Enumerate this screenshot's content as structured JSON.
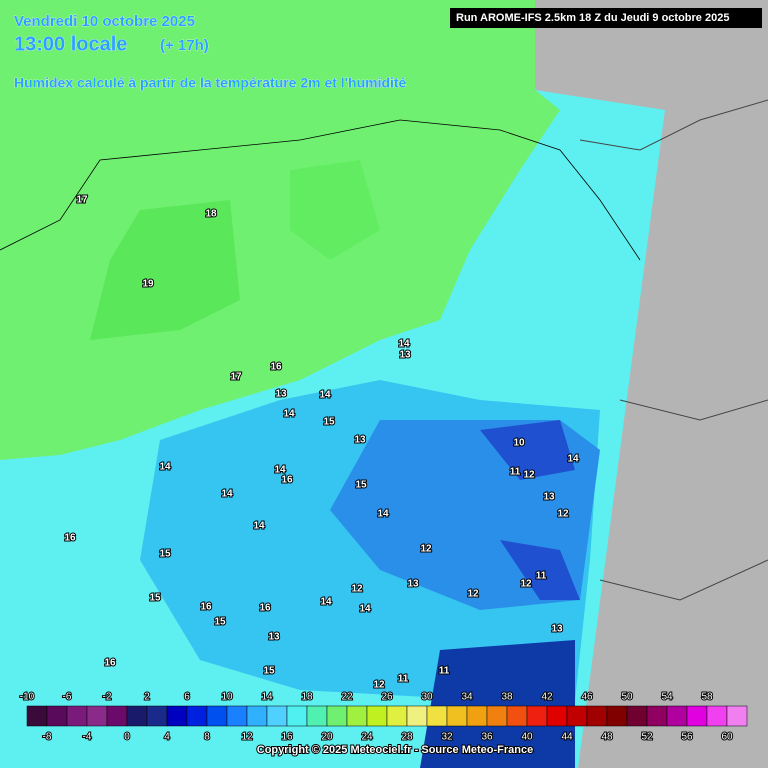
{
  "header": {
    "date": "Vendredi 10 octobre 2025",
    "time": "13:00 locale",
    "offset": "(+ 17h)",
    "description": "Humidex calculé à partir de la température 2m et l'humidité",
    "run": "Run AROME-IFS 2.5km 18 Z du Jeudi 9 octobre 2025"
  },
  "contour_labels": [
    "17",
    "18",
    "19",
    "17",
    "16",
    "14",
    "13",
    "13",
    "14",
    "14",
    "15",
    "13",
    "10",
    "14",
    "14",
    "16",
    "11",
    "12",
    "14",
    "15",
    "14",
    "13",
    "14",
    "14",
    "12",
    "16",
    "15",
    "12",
    "11",
    "12",
    "13",
    "12",
    "15",
    "12",
    "14",
    "16",
    "16",
    "14",
    "15",
    "13",
    "13",
    "16",
    "15",
    "11",
    "12",
    "11"
  ],
  "colorbar": {
    "top_labels": [
      -10,
      -6,
      -2,
      2,
      6,
      10,
      14,
      18,
      22,
      26,
      30,
      34,
      38,
      42,
      46,
      50,
      54,
      58
    ],
    "bottom_labels": [
      -8,
      -4,
      0,
      4,
      8,
      12,
      16,
      20,
      24,
      28,
      32,
      36,
      40,
      44,
      48,
      52,
      56,
      60
    ]
  },
  "footer": {
    "copyright": "Copyright © 2025 Meteociel.fr - Source Meteo-France"
  }
}
